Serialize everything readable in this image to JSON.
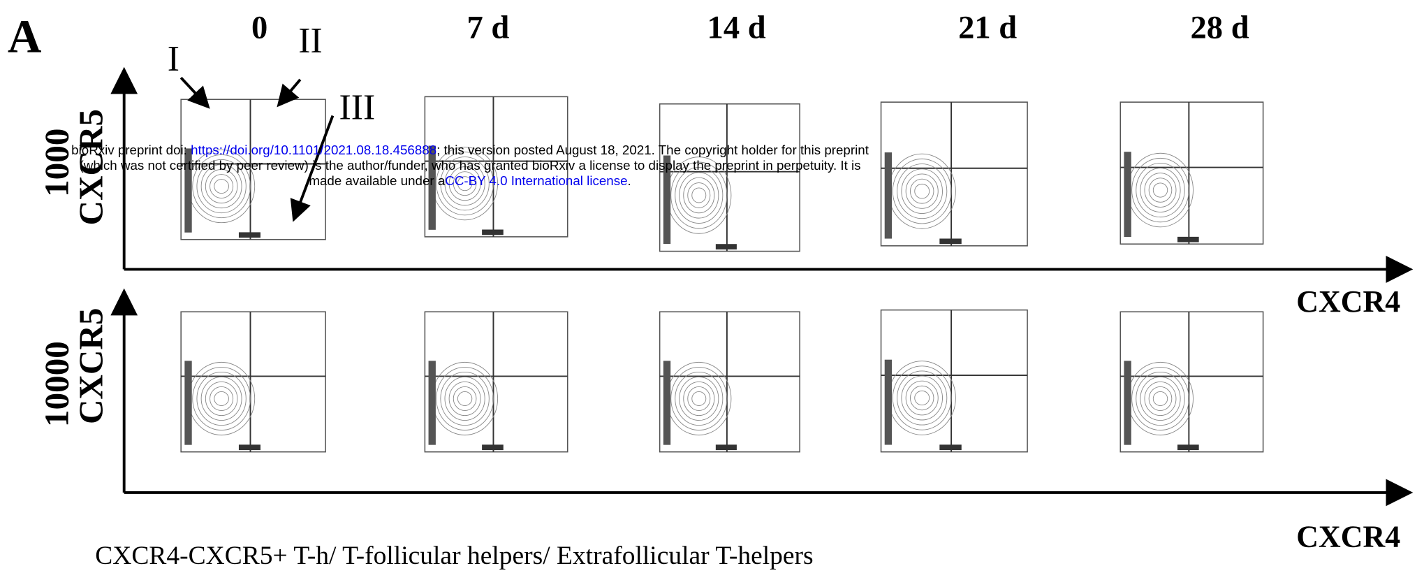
{
  "header": {
    "line1": {
      "prefix": "bioRxiv preprint doi: ",
      "link": "https://doi.org/10.1101/2021.08.18.456888",
      "suffix": "; this version posted August 18, 2021. The copyright holder for this preprint"
    },
    "line2": "(which was not certified by peer review) is the author/funder, who has granted bioRxiv a license to display the preprint in perpetuity. It is",
    "line3": {
      "prefix": "made available under a",
      "link": "CC-BY 4.0 International license",
      "suffix": "."
    }
  },
  "figure": {
    "panel_label": "A",
    "columns": [
      "0",
      "7 d",
      "14 d",
      "21 d",
      "28 d"
    ],
    "annotations": [
      "I",
      "II",
      "III"
    ],
    "rows": [
      {
        "dose": "1000",
        "y_label": "CXCR5",
        "x_label": "CXCR4"
      },
      {
        "dose": "10000",
        "y_label": "CXCR5",
        "x_label": "CXCR4"
      }
    ],
    "caption": "CXCR4-CXCR5+ T-h/ T-follicular helpers/ Extrafollicular T-helpers"
  }
}
